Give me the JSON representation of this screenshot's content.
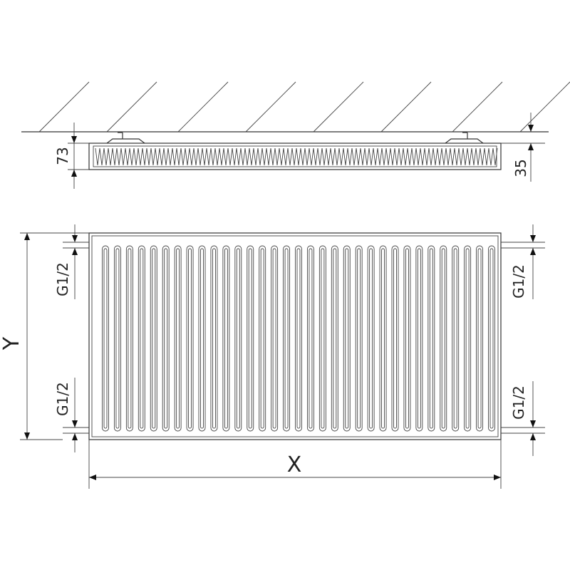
{
  "top_view": {
    "depth_label": "73",
    "wall_gap_label": "35"
  },
  "front_view": {
    "height_label": "Y",
    "width_label": "X",
    "connections": [
      "G1/2",
      "G1/2",
      "G1/2",
      "G1/2"
    ],
    "fin_count": 33
  },
  "colors": {
    "line": "#333333",
    "background": "#ffffff"
  }
}
